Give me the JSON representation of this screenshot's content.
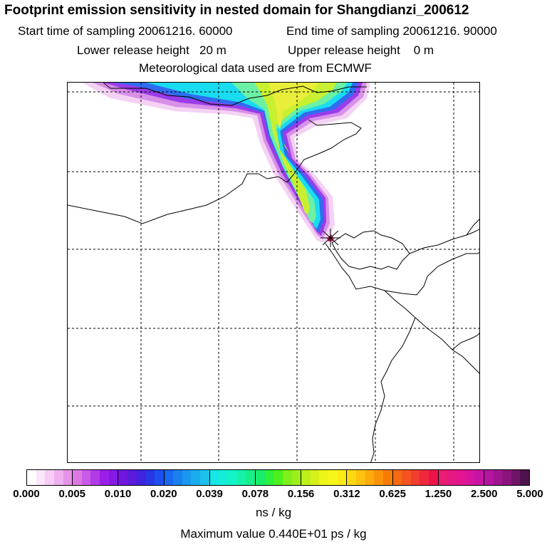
{
  "header": {
    "title": "Footprint emission sensitivity in nested domain for Shangdianzi_200612",
    "start_label": "Start time of sampling 20061216. 60000",
    "end_label": "End time of sampling 20061216. 90000",
    "lower_label": "Lower release height   20 m",
    "upper_label": "Upper release height    0 m",
    "met_label": "Meteorological data used are from ECMWF"
  },
  "colorbar": {
    "ticks": [
      "0.000",
      "0.005",
      "0.010",
      "0.020",
      "0.039",
      "0.078",
      "0.156",
      "0.312",
      "0.625",
      "1.250",
      "2.500",
      "5.000"
    ],
    "colors": [
      [
        "#ffffff",
        "#fbe6fb",
        "#f6cdf6",
        "#efb0ef",
        "#e694e6"
      ],
      [
        "#dc7ae3",
        "#c95be6",
        "#b23be8",
        "#9b1fe8",
        "#851ae3"
      ],
      [
        "#6f17df",
        "#5a1bdb",
        "#3f23de",
        "#2a35e6",
        "#1b50ef"
      ],
      [
        "#1a69f2",
        "#1a80f0",
        "#1a97ef",
        "#1aaced",
        "#1ac1eb"
      ],
      [
        "#16e6e6",
        "#14eed9",
        "#12f4c6",
        "#14f2aa",
        "#16f089"
      ],
      [
        "#18ec6a",
        "#2cf03a",
        "#4cf01c",
        "#7ef01a",
        "#9cf01a"
      ],
      [
        "#bdf01a",
        "#d6f01a",
        "#ecf41a",
        "#f8f51a",
        "#fcea14"
      ],
      [
        "#fdd712",
        "#fdc10e",
        "#fbab0a",
        "#f99408",
        "#f77c06"
      ],
      [
        "#f56a12",
        "#f35420",
        "#f23e2e",
        "#f0283c",
        "#ee144a"
      ],
      [
        "#ea1c74",
        "#e61882",
        "#e21490",
        "#d8149e",
        "#c814a4"
      ],
      [
        "#b414a0",
        "#a0148f",
        "#8a147c",
        "#701468",
        "#4e124c"
      ]
    ],
    "unit": "ns / kg",
    "max_value": "Maximum value  0.440E+01 ps / kg"
  },
  "map": {
    "receptor_marker_color": "#cc1155",
    "plume_colors": [
      "#f4d2f4",
      "#e08ee8",
      "#a040e8",
      "#3a70ee",
      "#18d8f0",
      "#70f0a0",
      "#c8f030"
    ]
  }
}
